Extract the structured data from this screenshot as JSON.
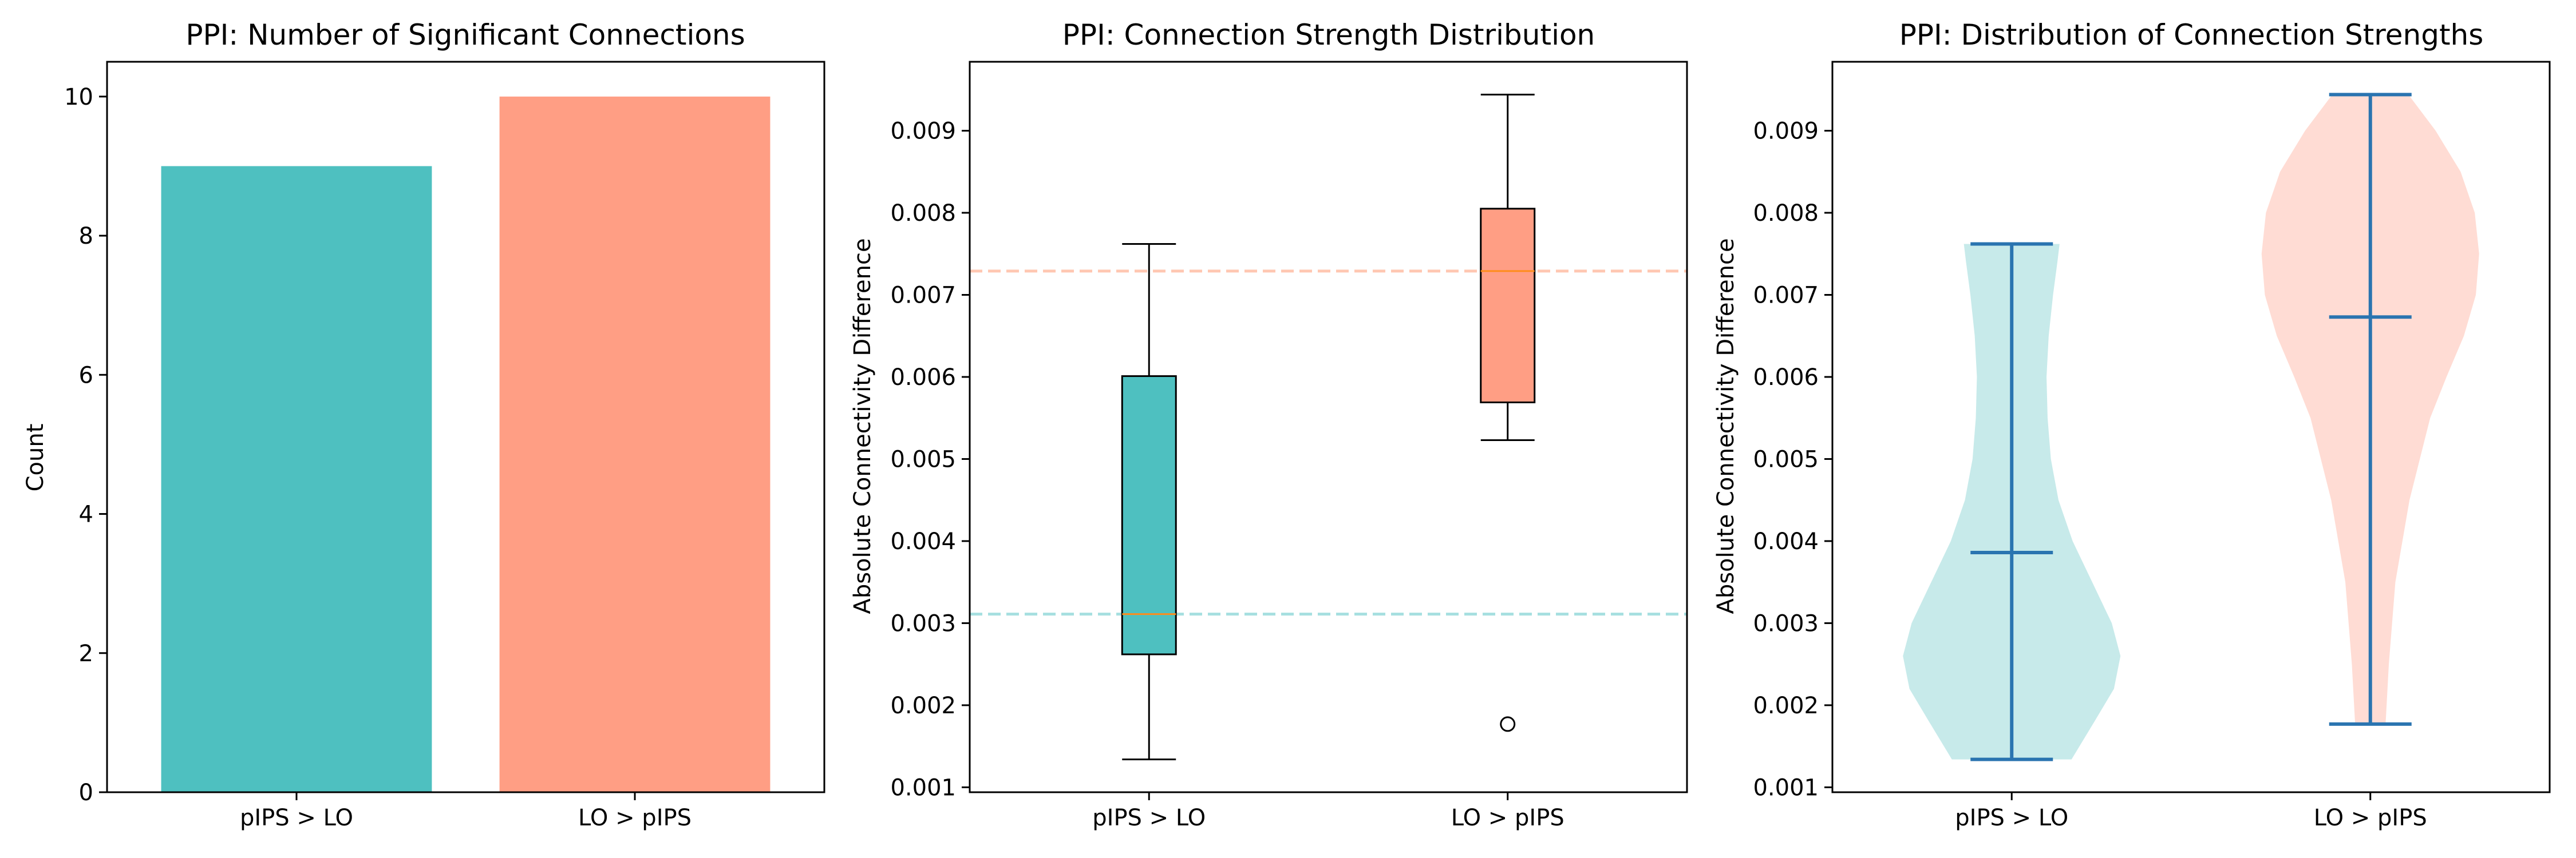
{
  "colors": {
    "teal": "#4ec0c0",
    "salmon": "#ff9e84",
    "teal_light": "#c7eaea",
    "salmon_light": "#ffdcd4",
    "violin_line": "#2a74b0",
    "median_line": "#ff8c1a",
    "teal_dash": "#a6dfe0",
    "salmon_dash": "#ffc7b2"
  },
  "chart_data": [
    {
      "type": "bar",
      "title": "PPI: Number of Significant Connections",
      "ylabel": "Count",
      "categories": [
        "pIPS > LO",
        "LO > pIPS"
      ],
      "values": [
        9,
        10
      ],
      "ylim": [
        0,
        10.5
      ],
      "yticks": [
        0,
        2,
        4,
        6,
        8,
        10
      ],
      "ytick_labels": [
        "0",
        "2",
        "4",
        "6",
        "8",
        "10"
      ],
      "grid": false
    },
    {
      "type": "box",
      "title": "PPI: Connection Strength Distribution",
      "ylabel": "Absolute Connectivity Difference",
      "categories": [
        "pIPS > LO",
        "LO > pIPS"
      ],
      "boxes": [
        {
          "whisker_low": 0.00134,
          "q1": 0.00262,
          "median": 0.00311,
          "q3": 0.00601,
          "whisker_high": 0.00762,
          "outliers": []
        },
        {
          "whisker_low": 0.00523,
          "q1": 0.00569,
          "median": 0.00729,
          "q3": 0.00805,
          "whisker_high": 0.00944,
          "outliers": [
            0.00177
          ]
        }
      ],
      "reference_lines": [
        0.00729,
        0.00311
      ],
      "ylim": [
        0.00094,
        0.00984
      ],
      "yticks": [
        0.001,
        0.002,
        0.003,
        0.004,
        0.005,
        0.006,
        0.007,
        0.008,
        0.009
      ],
      "ytick_labels": [
        "0.001",
        "0.002",
        "0.003",
        "0.004",
        "0.005",
        "0.006",
        "0.007",
        "0.008",
        "0.009"
      ],
      "grid": false
    },
    {
      "type": "violin",
      "title": "PPI: Distribution of Connection Strengths",
      "ylabel": "Absolute Connectivity Difference",
      "categories": [
        "pIPS > LO",
        "LO > pIPS"
      ],
      "violins": [
        {
          "min": 0.00134,
          "mean": 0.00386,
          "max": 0.00762,
          "profile_y": [
            0.00134,
            0.0018,
            0.0022,
            0.0026,
            0.003,
            0.0035,
            0.004,
            0.0045,
            0.005,
            0.0055,
            0.006,
            0.0065,
            0.007,
            0.0074,
            0.00762
          ],
          "profile_w": [
            0.55,
            0.76,
            0.94,
            1.0,
            0.92,
            0.74,
            0.56,
            0.43,
            0.36,
            0.33,
            0.32,
            0.34,
            0.38,
            0.42,
            0.44
          ]
        },
        {
          "min": 0.00177,
          "mean": 0.00673,
          "max": 0.00944,
          "profile_y": [
            0.00177,
            0.0025,
            0.0035,
            0.0045,
            0.0055,
            0.006,
            0.0065,
            0.007,
            0.0075,
            0.008,
            0.0085,
            0.009,
            0.00944
          ],
          "profile_w": [
            0.14,
            0.17,
            0.23,
            0.36,
            0.55,
            0.7,
            0.86,
            0.97,
            1.0,
            0.96,
            0.83,
            0.6,
            0.35
          ]
        }
      ],
      "ylim": [
        0.00094,
        0.00984
      ],
      "yticks": [
        0.001,
        0.002,
        0.003,
        0.004,
        0.005,
        0.006,
        0.007,
        0.008,
        0.009
      ],
      "ytick_labels": [
        "0.001",
        "0.002",
        "0.003",
        "0.004",
        "0.005",
        "0.006",
        "0.007",
        "0.008",
        "0.009"
      ],
      "grid": false
    }
  ]
}
